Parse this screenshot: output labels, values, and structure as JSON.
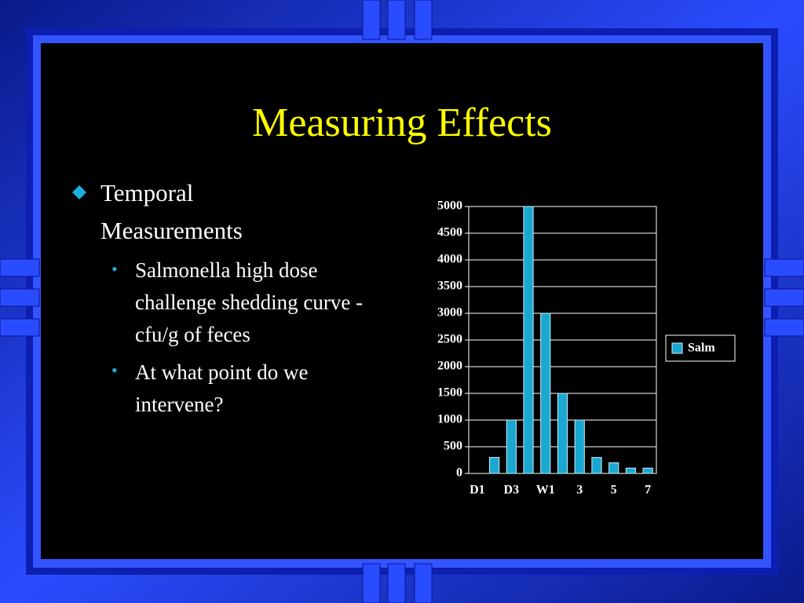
{
  "slide": {
    "title": "Measuring Effects",
    "bullets": [
      {
        "text": "Temporal Measurements",
        "sub": [
          "Salmonella high dose challenge shedding curve - cfu/g of feces",
          "At what point do we intervene?"
        ]
      }
    ]
  },
  "chart_data": {
    "type": "bar",
    "categories": [
      "D1",
      null,
      "D3",
      null,
      "W1",
      null,
      "3",
      null,
      "5",
      null,
      "7"
    ],
    "series": [
      {
        "name": "Salm",
        "color": "#1aa8d0",
        "values": [
          0,
          300,
          1000,
          5000,
          3000,
          1500,
          1000,
          300,
          200,
          100,
          100
        ]
      }
    ],
    "ylim": [
      0,
      5000
    ],
    "yticks": [
      0,
      500,
      1000,
      1500,
      2000,
      2500,
      3000,
      3500,
      4000,
      4500,
      5000
    ],
    "grid": true,
    "legend": "right"
  }
}
